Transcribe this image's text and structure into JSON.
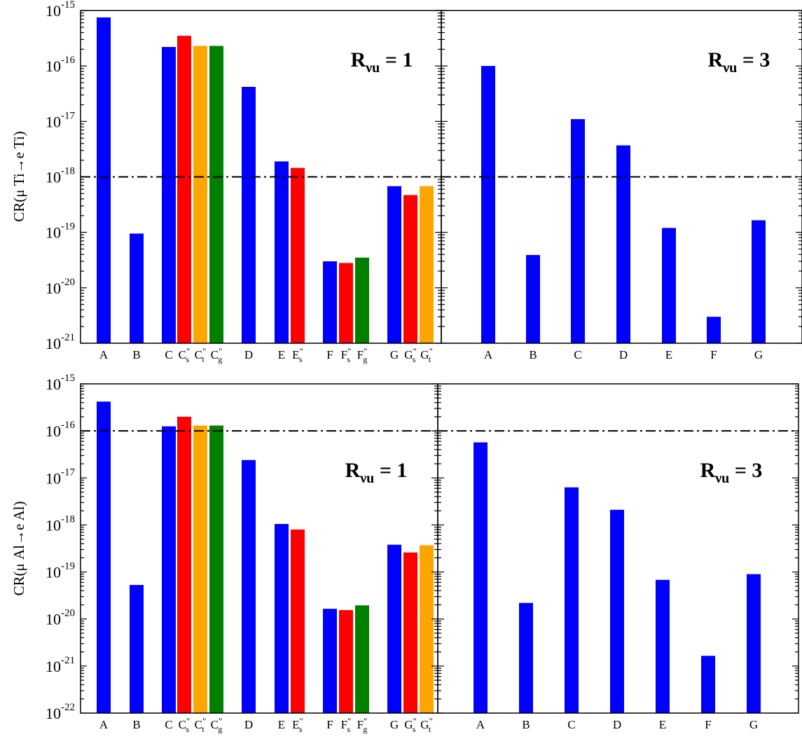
{
  "colors": {
    "blue": "#0000ff",
    "red": "#ff0000",
    "orange": "#ffa500",
    "green": "#008000"
  },
  "chart_data": [
    {
      "type": "bar",
      "yscale": "log",
      "ylim": [
        1e-21,
        1e-15
      ],
      "ylabel": "CR(μ Ti→e Ti)",
      "annotation": "R_νu = 1",
      "annotation_parts": {
        "base": "R",
        "sub": "νu",
        "rest": " = 1"
      },
      "reference_line": 1e-18,
      "ytick_exponents": [
        "-21",
        "-20",
        "-19",
        "-18",
        "-17",
        "-16",
        "-15"
      ],
      "groups": [
        {
          "bars": [
            {
              "label": "A",
              "value": 7.5e-16,
              "color": "blue"
            }
          ]
        },
        {
          "bars": [
            {
              "label": "B",
              "value": 9.5e-20,
              "color": "blue"
            }
          ]
        },
        {
          "bars": [
            {
              "label": "C",
              "value": 2.2e-16,
              "color": "blue"
            },
            {
              "label": "C",
              "label_sub": "s",
              "value": 3.5e-16,
              "color": "red"
            },
            {
              "label": "C",
              "label_sub": "t",
              "value": 2.3e-16,
              "color": "orange"
            },
            {
              "label": "C",
              "label_sub": "g",
              "value": 2.3e-16,
              "color": "green"
            }
          ]
        },
        {
          "bars": [
            {
              "label": "D",
              "value": 4.2e-17,
              "color": "blue"
            }
          ]
        },
        {
          "bars": [
            {
              "label": "E",
              "value": 1.9e-18,
              "color": "blue"
            },
            {
              "label": "E",
              "label_sub": "s",
              "value": 1.45e-18,
              "color": "red"
            }
          ]
        },
        {
          "bars": [
            {
              "label": "F",
              "value": 3e-20,
              "color": "blue"
            },
            {
              "label": "F",
              "label_sub": "s",
              "value": 2.8e-20,
              "color": "red"
            },
            {
              "label": "F",
              "label_sub": "g",
              "value": 3.5e-20,
              "color": "green"
            }
          ]
        },
        {
          "bars": [
            {
              "label": "G",
              "value": 6.8e-19,
              "color": "blue"
            },
            {
              "label": "G",
              "label_sub": "s",
              "value": 4.7e-19,
              "color": "red"
            },
            {
              "label": "G",
              "label_sub": "t",
              "value": 6.8e-19,
              "color": "orange"
            }
          ]
        }
      ]
    },
    {
      "type": "bar",
      "yscale": "log",
      "ylim": [
        1e-21,
        1e-15
      ],
      "annotation": "R_νu = 3",
      "annotation_parts": {
        "base": "R",
        "sub": "νu",
        "rest": " = 3"
      },
      "reference_line": 1e-18,
      "groups": [
        {
          "bars": [
            {
              "label": "A",
              "value": 1e-16,
              "color": "blue"
            }
          ]
        },
        {
          "bars": [
            {
              "label": "B",
              "value": 3.9e-20,
              "color": "blue"
            }
          ]
        },
        {
          "bars": [
            {
              "label": "C",
              "value": 1.1e-17,
              "color": "blue"
            }
          ]
        },
        {
          "bars": [
            {
              "label": "D",
              "value": 3.7e-18,
              "color": "blue"
            }
          ]
        },
        {
          "bars": [
            {
              "label": "E",
              "value": 1.2e-19,
              "color": "blue"
            }
          ]
        },
        {
          "bars": [
            {
              "label": "F",
              "value": 3e-21,
              "color": "blue"
            }
          ]
        },
        {
          "bars": [
            {
              "label": "G",
              "value": 1.65e-19,
              "color": "blue"
            }
          ]
        }
      ]
    },
    {
      "type": "bar",
      "yscale": "log",
      "ylim": [
        1e-22,
        1e-15
      ],
      "ylabel": "CR(μ Al→e Al)",
      "annotation": "R_νu = 1",
      "annotation_parts": {
        "base": "R",
        "sub": "νu",
        "rest": " = 1"
      },
      "reference_line": 1e-16,
      "ytick_exponents": [
        "-22",
        "-21",
        "-20",
        "-19",
        "-18",
        "-17",
        "-16",
        "-15"
      ],
      "groups": [
        {
          "bars": [
            {
              "label": "A",
              "value": 4.2e-16,
              "color": "blue"
            }
          ]
        },
        {
          "bars": [
            {
              "label": "B",
              "value": 5.3e-20,
              "color": "blue"
            }
          ]
        },
        {
          "bars": [
            {
              "label": "C",
              "value": 1.25e-16,
              "color": "blue"
            },
            {
              "label": "C",
              "label_sub": "s",
              "value": 2e-16,
              "color": "red"
            },
            {
              "label": "C",
              "label_sub": "t",
              "value": 1.3e-16,
              "color": "orange"
            },
            {
              "label": "C",
              "label_sub": "g",
              "value": 1.3e-16,
              "color": "green"
            }
          ]
        },
        {
          "bars": [
            {
              "label": "D",
              "value": 2.4e-17,
              "color": "blue"
            }
          ]
        },
        {
          "bars": [
            {
              "label": "E",
              "value": 1.05e-18,
              "color": "blue"
            },
            {
              "label": "E",
              "label_sub": "s",
              "value": 8e-19,
              "color": "red"
            }
          ]
        },
        {
          "bars": [
            {
              "label": "F",
              "value": 1.65e-20,
              "color": "blue"
            },
            {
              "label": "F",
              "label_sub": "s",
              "value": 1.55e-20,
              "color": "red"
            },
            {
              "label": "F",
              "label_sub": "g",
              "value": 1.95e-20,
              "color": "green"
            }
          ]
        },
        {
          "bars": [
            {
              "label": "G",
              "value": 3.8e-19,
              "color": "blue"
            },
            {
              "label": "G",
              "label_sub": "s",
              "value": 2.6e-19,
              "color": "red"
            },
            {
              "label": "G",
              "label_sub": "t",
              "value": 3.7e-19,
              "color": "orange"
            }
          ]
        }
      ]
    },
    {
      "type": "bar",
      "yscale": "log",
      "ylim": [
        1e-22,
        1e-15
      ],
      "annotation": "R_νu = 3",
      "annotation_parts": {
        "base": "R",
        "sub": "νu",
        "rest": " = 3"
      },
      "reference_line": 1e-16,
      "groups": [
        {
          "bars": [
            {
              "label": "A",
              "value": 5.7e-17,
              "color": "blue"
            }
          ]
        },
        {
          "bars": [
            {
              "label": "B",
              "value": 2.2e-20,
              "color": "blue"
            }
          ]
        },
        {
          "bars": [
            {
              "label": "C",
              "value": 6.3e-18,
              "color": "blue"
            }
          ]
        },
        {
          "bars": [
            {
              "label": "D",
              "value": 2.1e-18,
              "color": "blue"
            }
          ]
        },
        {
          "bars": [
            {
              "label": "E",
              "value": 6.8e-20,
              "color": "blue"
            }
          ]
        },
        {
          "bars": [
            {
              "label": "F",
              "value": 1.65e-21,
              "color": "blue"
            }
          ]
        },
        {
          "bars": [
            {
              "label": "G",
              "value": 9e-20,
              "color": "blue"
            }
          ]
        }
      ]
    }
  ]
}
